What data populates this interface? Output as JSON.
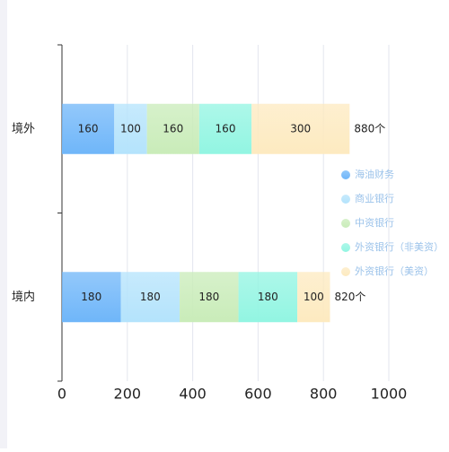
{
  "chart_data": {
    "type": "stacked-bar-horizontal",
    "categories": [
      "境外",
      "境内"
    ],
    "series": [
      {
        "name": "海油财务",
        "color": "#6fb6f9",
        "values": [
          160,
          180
        ]
      },
      {
        "name": "商业银行",
        "color": "#b4e3fc",
        "values": [
          100,
          180
        ]
      },
      {
        "name": "中资银行",
        "color": "#c9ecb9",
        "values": [
          160,
          180
        ]
      },
      {
        "name": "外资银行（非美资）",
        "color": "#92f5e2",
        "values": [
          160,
          180
        ]
      },
      {
        "name": "外资银行（美资）",
        "color": "#fdeac0",
        "values": [
          300,
          100
        ]
      }
    ],
    "total_labels": [
      "880个",
      "820个"
    ],
    "xlim": [
      0,
      1000
    ],
    "xticks": [
      0,
      200,
      400,
      600,
      800,
      1000
    ],
    "grid": true
  }
}
